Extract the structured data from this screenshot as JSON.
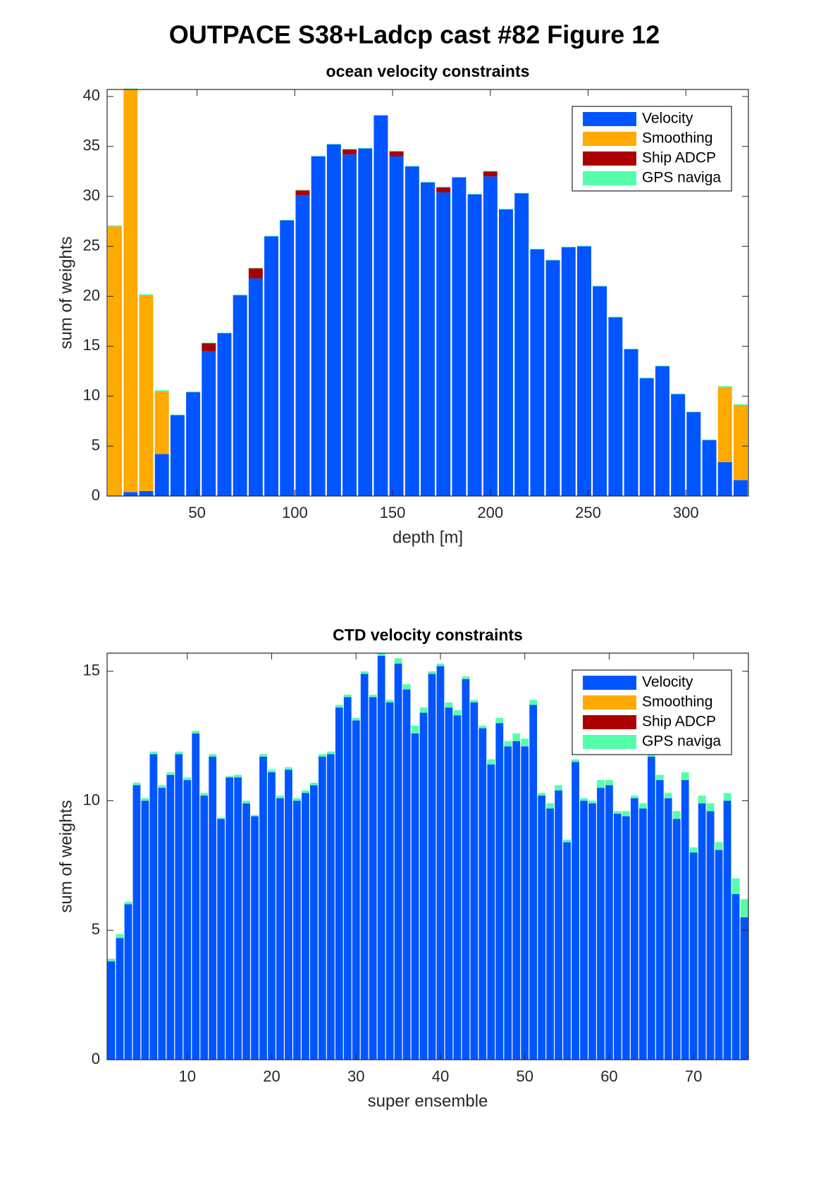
{
  "title": "OUTPACE S38+Ladcp cast #82  Figure 12",
  "chart_data": [
    {
      "type": "bar",
      "stacked": true,
      "title": "ocean velocity constraints",
      "xlabel": "depth [m]",
      "ylabel": "sum of weights",
      "x": [
        8,
        16,
        24,
        32,
        40,
        48,
        56,
        64,
        72,
        80,
        88,
        96,
        104,
        112,
        120,
        128,
        136,
        144,
        152,
        160,
        168,
        176,
        184,
        192,
        200,
        208,
        216,
        224,
        232,
        240,
        248,
        256,
        264,
        272,
        280,
        288,
        296,
        304,
        312,
        320,
        328
      ],
      "series": [
        {
          "name": "Velocity",
          "color": "#0055ff",
          "values": [
            0,
            0.4,
            0.5,
            4.2,
            8.1,
            10.4,
            14.5,
            16.3,
            20.1,
            21.8,
            26.0,
            27.6,
            30.1,
            34.0,
            35.2,
            34.2,
            34.8,
            38.1,
            34.0,
            33.0,
            31.4,
            30.4,
            31.9,
            30.2,
            32.0,
            28.7,
            30.3,
            24.7,
            23.6,
            24.9,
            25.0,
            21.0,
            17.9,
            14.7,
            11.8,
            13.0,
            10.2,
            8.4,
            5.6,
            3.4,
            1.6
          ]
        },
        {
          "name": "Smoothing",
          "color": "#ffaa00",
          "values": [
            27.0,
            40.3,
            19.6,
            6.3,
            0,
            0,
            0,
            0,
            0,
            0,
            0,
            0,
            0,
            0,
            0,
            0,
            0,
            0,
            0,
            0,
            0,
            0,
            0,
            0,
            0,
            0,
            0,
            0,
            0,
            0,
            0,
            0,
            0,
            0,
            0,
            0,
            0,
            0,
            0,
            7.5,
            7.5
          ]
        },
        {
          "name": "Ship ADCP",
          "color": "#aa0000",
          "values": [
            0,
            0,
            0,
            0,
            0,
            0,
            0.8,
            0,
            0,
            1.0,
            0,
            0,
            0.5,
            0,
            0,
            0.5,
            0,
            0,
            0.5,
            0,
            0,
            0.5,
            0,
            0,
            0.5,
            0,
            0,
            0,
            0,
            0,
            0,
            0,
            0,
            0,
            0,
            0,
            0,
            0,
            0,
            0,
            0
          ]
        },
        {
          "name": "GPS naviga",
          "color": "#55ffaa",
          "values": [
            0.1,
            0.1,
            0.1,
            0.1,
            0.05,
            0.05,
            0.05,
            0.05,
            0.05,
            0.05,
            0.05,
            0.05,
            0.05,
            0.05,
            0.05,
            0.05,
            0.05,
            0.05,
            0.05,
            0.05,
            0.05,
            0.05,
            0.05,
            0.05,
            0.05,
            0.05,
            0.05,
            0.05,
            0.05,
            0.05,
            0.05,
            0.05,
            0.05,
            0.05,
            0.05,
            0.05,
            0.05,
            0.05,
            0.05,
            0.1,
            0.1
          ]
        }
      ],
      "xlim": [
        4,
        332
      ],
      "ylim": [
        0,
        40.7
      ],
      "xticks": [
        50,
        100,
        150,
        200,
        250,
        300
      ],
      "yticks": [
        0,
        5,
        10,
        15,
        20,
        25,
        30,
        35,
        40
      ],
      "legend": "northeast"
    },
    {
      "type": "bar",
      "stacked": true,
      "title": "CTD velocity constraints",
      "xlabel": "super ensemble",
      "ylabel": "sum of weights",
      "x": [
        1,
        2,
        3,
        4,
        5,
        6,
        7,
        8,
        9,
        10,
        11,
        12,
        13,
        14,
        15,
        16,
        17,
        18,
        19,
        20,
        21,
        22,
        23,
        24,
        25,
        26,
        27,
        28,
        29,
        30,
        31,
        32,
        33,
        34,
        35,
        36,
        37,
        38,
        39,
        40,
        41,
        42,
        43,
        44,
        45,
        46,
        47,
        48,
        49,
        50,
        51,
        52,
        53,
        54,
        55,
        56,
        57,
        58,
        59,
        60,
        61,
        62,
        63,
        64,
        65,
        66,
        67,
        68,
        69,
        70,
        71,
        72,
        73,
        74,
        75,
        76
      ],
      "series": [
        {
          "name": "Velocity",
          "color": "#0055ff",
          "values": [
            3.8,
            4.7,
            6.0,
            10.6,
            10.0,
            11.8,
            10.5,
            11.0,
            11.8,
            10.8,
            12.6,
            10.2,
            11.7,
            9.3,
            10.9,
            10.9,
            9.9,
            9.4,
            11.7,
            11.1,
            10.1,
            11.2,
            10.0,
            10.3,
            10.6,
            11.7,
            11.8,
            13.6,
            14.0,
            13.1,
            14.9,
            14.0,
            15.6,
            13.8,
            15.3,
            14.3,
            12.6,
            13.4,
            14.9,
            15.2,
            13.6,
            13.3,
            14.7,
            13.8,
            12.8,
            11.4,
            13.0,
            12.1,
            12.3,
            12.1,
            13.7,
            10.2,
            9.7,
            10.4,
            8.4,
            11.5,
            10.0,
            9.9,
            10.5,
            10.6,
            9.5,
            9.4,
            10.1,
            9.7,
            11.7,
            10.8,
            10.1,
            9.3,
            10.8,
            8.0,
            9.9,
            9.6,
            8.1,
            10.0,
            6.4,
            5.5
          ]
        },
        {
          "name": "Smoothing",
          "color": "#ffaa00",
          "values": [
            0,
            0,
            0,
            0,
            0,
            0,
            0,
            0,
            0,
            0,
            0,
            0,
            0,
            0,
            0,
            0,
            0,
            0,
            0,
            0,
            0,
            0,
            0,
            0,
            0,
            0,
            0,
            0,
            0,
            0,
            0,
            0,
            0,
            0,
            0,
            0,
            0,
            0,
            0,
            0,
            0,
            0,
            0,
            0,
            0,
            0,
            0,
            0,
            0,
            0,
            0,
            0,
            0,
            0,
            0,
            0,
            0,
            0,
            0,
            0,
            0,
            0,
            0,
            0,
            0,
            0,
            0,
            0,
            0,
            0,
            0,
            0,
            0,
            0,
            0,
            0
          ]
        },
        {
          "name": "Ship ADCP",
          "color": "#aa0000",
          "values": [
            0,
            0,
            0,
            0,
            0,
            0,
            0,
            0,
            0,
            0,
            0,
            0,
            0,
            0,
            0,
            0,
            0,
            0,
            0,
            0,
            0,
            0,
            0,
            0,
            0,
            0,
            0,
            0,
            0,
            0,
            0,
            0,
            0,
            0,
            0,
            0,
            0,
            0,
            0,
            0,
            0,
            0,
            0,
            0,
            0,
            0,
            0,
            0,
            0,
            0,
            0,
            0,
            0,
            0,
            0,
            0,
            0,
            0,
            0,
            0,
            0,
            0,
            0,
            0,
            0,
            0,
            0,
            0,
            0,
            0,
            0,
            0,
            0,
            0,
            0,
            0
          ]
        },
        {
          "name": "GPS naviga",
          "color": "#55ffaa",
          "values": [
            0.1,
            0.15,
            0.1,
            0.1,
            0.1,
            0.1,
            0.1,
            0.1,
            0.1,
            0.1,
            0.1,
            0.1,
            0.1,
            0.05,
            0.05,
            0.1,
            0.1,
            0.05,
            0.1,
            0.1,
            0.1,
            0.1,
            0.1,
            0.1,
            0.1,
            0.1,
            0.1,
            0.1,
            0.1,
            0.1,
            0.1,
            0.1,
            0.1,
            0.1,
            0.2,
            0.2,
            0.3,
            0.2,
            0.1,
            0.1,
            0.2,
            0.2,
            0.1,
            0.1,
            0.1,
            0.2,
            0.2,
            0.2,
            0.3,
            0.3,
            0.2,
            0.1,
            0.2,
            0.2,
            0.1,
            0.1,
            0.1,
            0.1,
            0.3,
            0.2,
            0.1,
            0.2,
            0.1,
            0.2,
            0.3,
            0.2,
            0.2,
            0.3,
            0.3,
            0.2,
            0.3,
            0.3,
            0.3,
            0.3,
            0.6,
            0.7
          ]
        }
      ],
      "xlim": [
        0.5,
        76.5
      ],
      "ylim": [
        0,
        15.7
      ],
      "xticks": [
        10,
        20,
        30,
        40,
        50,
        60,
        70
      ],
      "yticks": [
        0,
        5,
        10,
        15
      ],
      "legend": "northeast"
    }
  ]
}
